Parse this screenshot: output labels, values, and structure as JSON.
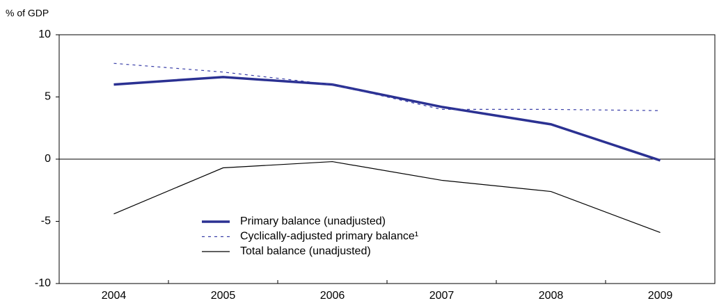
{
  "chart_data": {
    "type": "line",
    "y_label": "% of GDP",
    "categories": [
      "2004",
      "2005",
      "2006",
      "2007",
      "2008",
      "2009"
    ],
    "series": [
      {
        "name": "Primary balance (unadjusted)",
        "color": "#2b3192",
        "values": [
          6.0,
          6.6,
          6.0,
          4.2,
          2.8,
          -0.1
        ]
      },
      {
        "name": "Cyclically-adjusted primary balance¹",
        "color": "#3a3fa8",
        "values": [
          7.7,
          7.0,
          6.0,
          4.0,
          4.0,
          3.9
        ]
      },
      {
        "name": "Total balance (unadjusted)",
        "color": "#000000",
        "values": [
          -4.4,
          -0.7,
          -0.2,
          -1.7,
          -2.6,
          -5.9
        ]
      }
    ],
    "ylim": [
      -10,
      10
    ],
    "yticks": [
      -10,
      -5,
      0,
      5,
      10
    ]
  }
}
